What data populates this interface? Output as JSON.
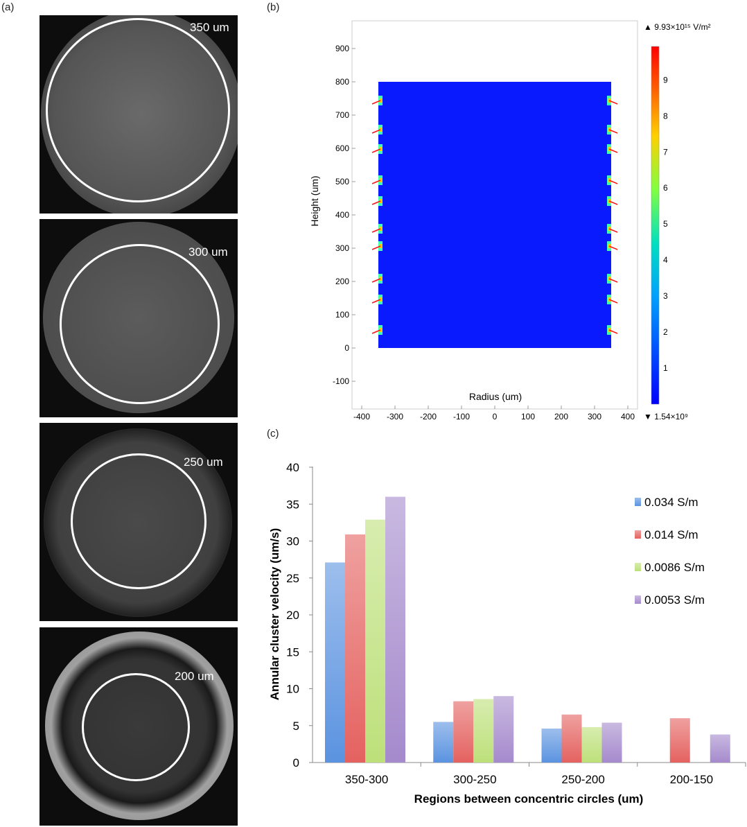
{
  "panels": {
    "a": "(a)",
    "b": "(b)",
    "c": "(c)"
  },
  "micrographs": [
    {
      "label": "350 um"
    },
    {
      "label": "300 um"
    },
    {
      "label": "250 um"
    },
    {
      "label": "200 um"
    }
  ],
  "simulation": {
    "xlabel": "Radius (um)",
    "ylabel": "Height (um)",
    "xticks": [
      "-400",
      "-300",
      "-200",
      "-100",
      "0",
      "100",
      "200",
      "300",
      "400"
    ],
    "yticks": [
      "900",
      "800",
      "700",
      "600",
      "500",
      "400",
      "300",
      "200",
      "100",
      "0",
      "-100"
    ],
    "colorbar_max": "▲ 9.93×10¹⁵ V/m²",
    "colorbar_min": "▼ 1.54×10⁹",
    "colorbar_ticks": [
      "9",
      "8",
      "7",
      "6",
      "5",
      "4",
      "3",
      "2",
      "1"
    ],
    "domain_color": "#0a1aff"
  },
  "chart_data": {
    "type": "bar",
    "title": "",
    "xlabel": "Regions between concentric circles  (um)",
    "ylabel": "Annular cluster velocity (um/s)",
    "categories": [
      "350-300",
      "300-250",
      "250-200",
      "200-150"
    ],
    "ylim": [
      0,
      40
    ],
    "yticks": [
      "0",
      "5",
      "10",
      "15",
      "20",
      "25",
      "30",
      "35",
      "40"
    ],
    "legend_position": "top-right",
    "series": [
      {
        "name": "0.034 S/m",
        "color": "#5b93e0",
        "values": [
          27.1,
          5.5,
          4.6,
          null
        ]
      },
      {
        "name": "0.014 S/m",
        "color": "#e46260",
        "values": [
          30.9,
          8.3,
          6.5,
          6.0
        ]
      },
      {
        "name": "0.0086 S/m",
        "color": "#bde07a",
        "values": [
          32.9,
          8.6,
          4.8,
          null
        ]
      },
      {
        "name": "0.0053 S/m",
        "color": "#a58acc",
        "values": [
          36.0,
          9.0,
          5.4,
          3.8
        ]
      }
    ]
  }
}
